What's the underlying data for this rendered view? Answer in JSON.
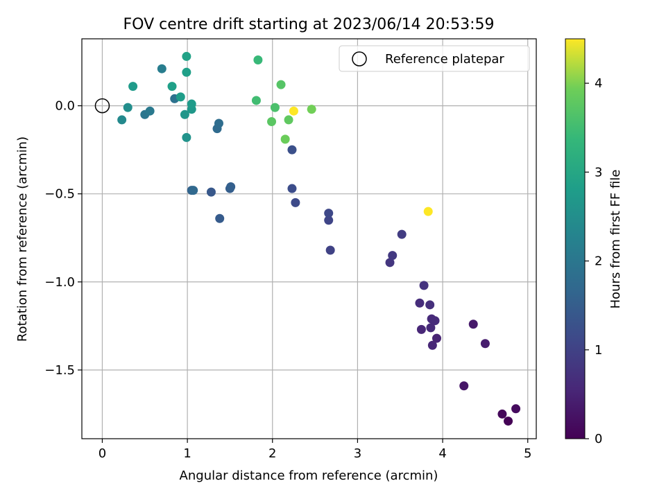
{
  "chart_data": {
    "type": "scatter",
    "title": "FOV centre drift starting at 2023/06/14 20:53:59",
    "xlabel": "Angular distance from reference (arcmin)",
    "ylabel": "Rotation from reference (arcmin)",
    "xlim": [
      -0.24,
      5.1
    ],
    "ylim": [
      -1.89,
      0.38
    ],
    "xticks": [
      "0",
      "1",
      "2",
      "3",
      "4",
      "5"
    ],
    "xtick_values": [
      0,
      1,
      2,
      3,
      4,
      5
    ],
    "yticks": [
      "0.0",
      "−0.5",
      "−1.0",
      "−1.5"
    ],
    "ytick_values": [
      0.0,
      -0.5,
      -1.0,
      -1.5
    ],
    "grid": true,
    "legend": {
      "placement": "top-right",
      "entries": [
        {
          "label": "Reference platepar",
          "marker": "open-circle",
          "x": 0.0,
          "y": 0.0
        }
      ]
    },
    "colorbar": {
      "label": "Hours from first FF file",
      "colormap": "viridis",
      "range": [
        0,
        4.5
      ],
      "ticks": [
        "0",
        "1",
        "2",
        "3",
        "4"
      ],
      "tick_values": [
        0,
        1,
        2,
        3,
        4
      ]
    },
    "points": [
      {
        "x": 4.77,
        "y": -1.79,
        "c": 0.02
      },
      {
        "x": 4.7,
        "y": -1.75,
        "c": 0.1
      },
      {
        "x": 4.86,
        "y": -1.72,
        "c": 0.15
      },
      {
        "x": 4.25,
        "y": -1.59,
        "c": 0.3
      },
      {
        "x": 4.36,
        "y": -1.24,
        "c": 0.35
      },
      {
        "x": 4.5,
        "y": -1.35,
        "c": 0.4
      },
      {
        "x": 3.93,
        "y": -1.32,
        "c": 0.5
      },
      {
        "x": 3.88,
        "y": -1.36,
        "c": 0.55
      },
      {
        "x": 3.75,
        "y": -1.27,
        "c": 0.55
      },
      {
        "x": 3.86,
        "y": -1.26,
        "c": 0.6
      },
      {
        "x": 3.87,
        "y": -1.21,
        "c": 0.6
      },
      {
        "x": 3.91,
        "y": -1.22,
        "c": 0.62
      },
      {
        "x": 3.73,
        "y": -1.12,
        "c": 0.65
      },
      {
        "x": 3.85,
        "y": -1.13,
        "c": 0.7
      },
      {
        "x": 3.78,
        "y": -1.02,
        "c": 0.75
      },
      {
        "x": 3.38,
        "y": -0.89,
        "c": 0.8
      },
      {
        "x": 3.41,
        "y": -0.85,
        "c": 0.85
      },
      {
        "x": 3.52,
        "y": -0.73,
        "c": 0.9
      },
      {
        "x": 2.68,
        "y": -0.82,
        "c": 1.0
      },
      {
        "x": 2.66,
        "y": -0.65,
        "c": 1.05
      },
      {
        "x": 2.66,
        "y": -0.61,
        "c": 1.1
      },
      {
        "x": 2.27,
        "y": -0.55,
        "c": 1.15
      },
      {
        "x": 2.23,
        "y": -0.47,
        "c": 1.2
      },
      {
        "x": 2.23,
        "y": -0.25,
        "c": 1.25
      },
      {
        "x": 1.28,
        "y": -0.49,
        "c": 1.4
      },
      {
        "x": 1.38,
        "y": -0.64,
        "c": 1.45
      },
      {
        "x": 1.5,
        "y": -0.47,
        "c": 1.5
      },
      {
        "x": 1.51,
        "y": -0.46,
        "c": 1.55
      },
      {
        "x": 1.05,
        "y": -0.48,
        "c": 1.6
      },
      {
        "x": 1.07,
        "y": -0.48,
        "c": 1.7
      },
      {
        "x": 1.35,
        "y": -0.13,
        "c": 1.75
      },
      {
        "x": 1.37,
        "y": -0.1,
        "c": 1.8
      },
      {
        "x": 0.85,
        "y": 0.04,
        "c": 1.9
      },
      {
        "x": 0.5,
        "y": -0.05,
        "c": 2.0
      },
      {
        "x": 0.56,
        "y": -0.03,
        "c": 2.05
      },
      {
        "x": 0.7,
        "y": 0.21,
        "c": 2.15
      },
      {
        "x": 0.23,
        "y": -0.08,
        "c": 2.4
      },
      {
        "x": 0.3,
        "y": -0.01,
        "c": 2.5
      },
      {
        "x": 0.99,
        "y": -0.18,
        "c": 2.6
      },
      {
        "x": 0.97,
        "y": -0.05,
        "c": 2.65
      },
      {
        "x": 1.05,
        "y": -0.02,
        "c": 2.7
      },
      {
        "x": 1.05,
        "y": 0.01,
        "c": 2.75
      },
      {
        "x": 0.36,
        "y": 0.11,
        "c": 2.75
      },
      {
        "x": 0.92,
        "y": 0.05,
        "c": 2.8
      },
      {
        "x": 0.82,
        "y": 0.11,
        "c": 2.85
      },
      {
        "x": 0.99,
        "y": 0.19,
        "c": 2.85
      },
      {
        "x": 0.99,
        "y": 0.28,
        "c": 2.9
      },
      {
        "x": 1.83,
        "y": 0.26,
        "c": 3.4
      },
      {
        "x": 1.81,
        "y": 0.03,
        "c": 3.5
      },
      {
        "x": 2.03,
        "y": -0.01,
        "c": 3.6
      },
      {
        "x": 2.1,
        "y": 0.12,
        "c": 3.7
      },
      {
        "x": 1.99,
        "y": -0.09,
        "c": 3.75
      },
      {
        "x": 2.19,
        "y": -0.08,
        "c": 3.8
      },
      {
        "x": 2.15,
        "y": -0.19,
        "c": 3.9
      },
      {
        "x": 2.46,
        "y": -0.02,
        "c": 3.95
      },
      {
        "x": 3.83,
        "y": -0.6,
        "c": 4.5
      },
      {
        "x": 2.25,
        "y": -0.03,
        "c": 4.5
      }
    ]
  }
}
